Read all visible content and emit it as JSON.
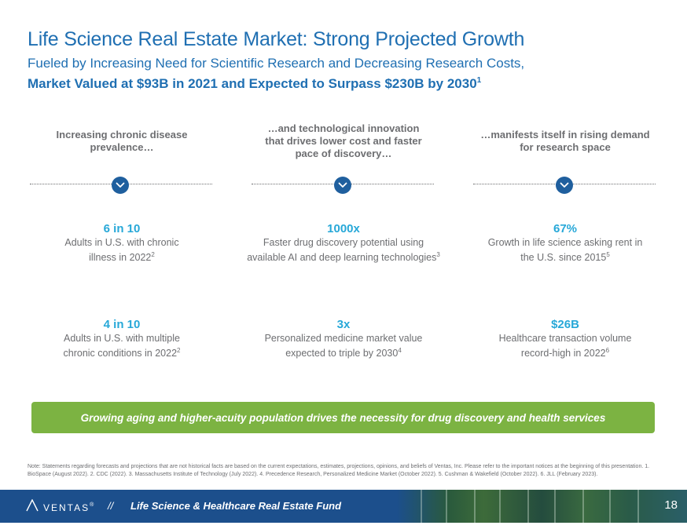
{
  "header": {
    "title": "Life Science Real Estate Market: Strong Projected Growth",
    "subtitle": "Fueled by Increasing Need for Scientific Research and Decreasing Research Costs,",
    "subtitle_bold": "Market Valued at $93B in 2021 and Expected to Surpass $230B by 2030",
    "subtitle_bold_sup": "1"
  },
  "columns": [
    {
      "heading_lines": [
        "Increasing chronic disease",
        "prevalence…"
      ],
      "stats": [
        {
          "value": "6 in 10",
          "desc_lines": [
            "Adults in U.S. with chronic",
            "illness in 2022"
          ],
          "sup": "2"
        },
        {
          "value": "4 in 10",
          "desc_lines": [
            "Adults in U.S. with multiple",
            "chronic conditions in 2022"
          ],
          "sup": "2"
        }
      ]
    },
    {
      "heading_lines": [
        "…and technological innovation",
        "that drives lower cost and faster",
        "pace of discovery…"
      ],
      "stats": [
        {
          "value": "1000x",
          "desc_lines": [
            "Faster drug discovery potential using",
            "available AI and deep learning technologies"
          ],
          "sup": "3"
        },
        {
          "value": "3x",
          "desc_lines": [
            "Personalized medicine market value",
            "expected to triple by 2030"
          ],
          "sup": "4"
        }
      ]
    },
    {
      "heading_lines": [
        "…manifests itself in rising demand",
        "for research space"
      ],
      "stats": [
        {
          "value": "67%",
          "desc_lines": [
            "Growth in life science asking rent in",
            "the U.S. since 2015"
          ],
          "sup": "5"
        },
        {
          "value": "$26B",
          "desc_lines": [
            "Healthcare transaction volume",
            "record-high in 2022"
          ],
          "sup": "6"
        }
      ]
    }
  ],
  "banner": "Growing aging and higher-acuity population drives the necessity for drug discovery and health services",
  "note": "Note: Statements regarding forecasts and projections that are not historical facts are based on the current expectations, estimates, projections, opinions, and beliefs of Ventas, Inc. Please refer to the important notices at the beginning of this presentation. 1. BioSpace (August 2022). 2. CDC (2022). 3. Massachusetts Institute of Technology (July 2022). 4. Precedence Research, Personalized Medicine Market (October 2022). 5. Cushman & Wakefield (October 2022). 6. JLL (February 2023).",
  "footer": {
    "logo_text": "VENTAS",
    "logo_mark": "®",
    "separator": "//",
    "fund_name": "Life Science & Healthcare Real Estate Fund",
    "page_number": "18"
  },
  "colors": {
    "title_blue": "#1f6fb2",
    "stat_cyan": "#27a8d8",
    "chevron_navy": "#1f5f9e",
    "banner_green": "#7cb342",
    "footer_navy": "#1c4f8c"
  },
  "icons": {
    "divider_chevron": "chevron-down-icon",
    "logo": "ventas-logo-icon"
  }
}
